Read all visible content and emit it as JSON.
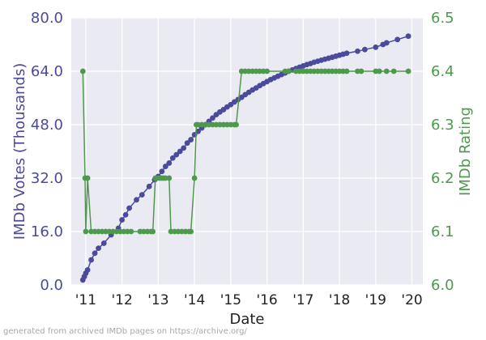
{
  "chart_data": {
    "type": "line",
    "xlabel": "Date",
    "x_ticks": [
      "'11",
      "'12",
      "'13",
      "'14",
      "'15",
      "'16",
      "'17",
      "'18",
      "'19",
      "'20"
    ],
    "x_domain": [
      2010.6,
      2020.3
    ],
    "grid": true,
    "y_left": {
      "label": "IMDb Votes (Thousands)",
      "ylim": [
        0,
        80
      ],
      "ticks": [
        "0.0",
        "16.0",
        "32.0",
        "48.0",
        "64.0",
        "80.0"
      ],
      "color": "#4b4a9c"
    },
    "y_right": {
      "label": "IMDb Rating",
      "ylim": [
        6.0,
        6.5
      ],
      "ticks": [
        "6.0",
        "6.1",
        "6.2",
        "6.3",
        "6.4",
        "6.5"
      ],
      "color": "#4e9a4d"
    },
    "series": [
      {
        "axis": "left",
        "marker": "circle",
        "x": [
          2010.92,
          2010.96,
          2011.0,
          2011.05,
          2011.15,
          2011.25,
          2011.35,
          2011.5,
          2011.7,
          2011.9,
          2012.0,
          2012.1,
          2012.2,
          2012.4,
          2012.55,
          2012.75,
          2012.9,
          2013.0,
          2013.1,
          2013.2,
          2013.3,
          2013.4,
          2013.5,
          2013.6,
          2013.7,
          2013.8,
          2013.9,
          2014.0,
          2014.1,
          2014.2,
          2014.3,
          2014.4,
          2014.5,
          2014.6,
          2014.7,
          2014.8,
          2014.9,
          2015.0,
          2015.1,
          2015.2,
          2015.3,
          2015.4,
          2015.5,
          2015.6,
          2015.7,
          2015.8,
          2015.9,
          2016.0,
          2016.1,
          2016.2,
          2016.3,
          2016.4,
          2016.5,
          2016.6,
          2016.7,
          2016.8,
          2016.9,
          2017.0,
          2017.1,
          2017.2,
          2017.3,
          2017.4,
          2017.5,
          2017.6,
          2017.7,
          2017.8,
          2017.9,
          2018.0,
          2018.1,
          2018.2,
          2018.5,
          2018.7,
          2019.0,
          2019.2,
          2019.3,
          2019.6,
          2019.9
        ],
        "values": [
          1.5,
          2.5,
          3.5,
          4.5,
          7.5,
          9.5,
          11.0,
          12.5,
          15.0,
          17.0,
          19.5,
          21.0,
          23.0,
          25.5,
          27.0,
          29.5,
          31.5,
          32.5,
          34.0,
          35.5,
          36.5,
          38.0,
          39.0,
          40.0,
          41.0,
          42.5,
          43.5,
          45.0,
          46.0,
          47.0,
          48.0,
          49.0,
          50.0,
          51.0,
          51.8,
          52.5,
          53.3,
          54.0,
          54.8,
          55.5,
          56.2,
          57.0,
          57.7,
          58.4,
          59.0,
          59.7,
          60.3,
          60.9,
          61.5,
          62.0,
          62.5,
          63.0,
          63.5,
          64.0,
          64.4,
          64.8,
          65.2,
          65.6,
          66.0,
          66.3,
          66.7,
          67.0,
          67.3,
          67.6,
          67.9,
          68.2,
          68.5,
          68.8,
          69.1,
          69.4,
          70.0,
          70.5,
          71.2,
          72.0,
          72.5,
          73.5,
          74.5
        ]
      },
      {
        "axis": "right",
        "marker": "circle",
        "x": [
          2010.92,
          2010.98,
          2011.0,
          2011.05,
          2011.15,
          2011.25,
          2011.35,
          2011.45,
          2011.55,
          2011.65,
          2011.75,
          2011.85,
          2011.95,
          2012.05,
          2012.15,
          2012.25,
          2012.5,
          2012.6,
          2012.7,
          2012.8,
          2012.85,
          2012.92,
          2013.0,
          2013.05,
          2013.1,
          2013.15,
          2013.2,
          2013.3,
          2013.35,
          2013.45,
          2013.55,
          2013.65,
          2013.75,
          2013.85,
          2013.9,
          2014.0,
          2014.05,
          2014.1,
          2014.2,
          2014.3,
          2014.4,
          2014.5,
          2014.6,
          2014.7,
          2014.8,
          2014.9,
          2015.0,
          2015.1,
          2015.15,
          2015.3,
          2015.4,
          2015.5,
          2015.6,
          2015.7,
          2015.8,
          2015.9,
          2016.0,
          2016.5,
          2016.6,
          2016.8,
          2016.9,
          2017.0,
          2017.1,
          2017.2,
          2017.3,
          2017.4,
          2017.5,
          2017.6,
          2017.7,
          2017.8,
          2017.9,
          2018.0,
          2018.1,
          2018.2,
          2018.5,
          2018.6,
          2019.0,
          2019.1,
          2019.3,
          2019.5,
          2019.9
        ],
        "values": [
          6.4,
          6.2,
          6.1,
          6.2,
          6.1,
          6.1,
          6.1,
          6.1,
          6.1,
          6.1,
          6.1,
          6.1,
          6.1,
          6.1,
          6.1,
          6.1,
          6.1,
          6.1,
          6.1,
          6.1,
          6.1,
          6.2,
          6.2,
          6.2,
          6.2,
          6.2,
          6.2,
          6.2,
          6.1,
          6.1,
          6.1,
          6.1,
          6.1,
          6.1,
          6.1,
          6.2,
          6.3,
          6.3,
          6.3,
          6.3,
          6.3,
          6.3,
          6.3,
          6.3,
          6.3,
          6.3,
          6.3,
          6.3,
          6.3,
          6.4,
          6.4,
          6.4,
          6.4,
          6.4,
          6.4,
          6.4,
          6.4,
          6.4,
          6.4,
          6.4,
          6.4,
          6.4,
          6.4,
          6.4,
          6.4,
          6.4,
          6.4,
          6.4,
          6.4,
          6.4,
          6.4,
          6.4,
          6.4,
          6.4,
          6.4,
          6.4,
          6.4,
          6.4,
          6.4,
          6.4,
          6.4
        ]
      }
    ]
  },
  "footer": "generated from archived IMDb pages on https://archive.org/"
}
